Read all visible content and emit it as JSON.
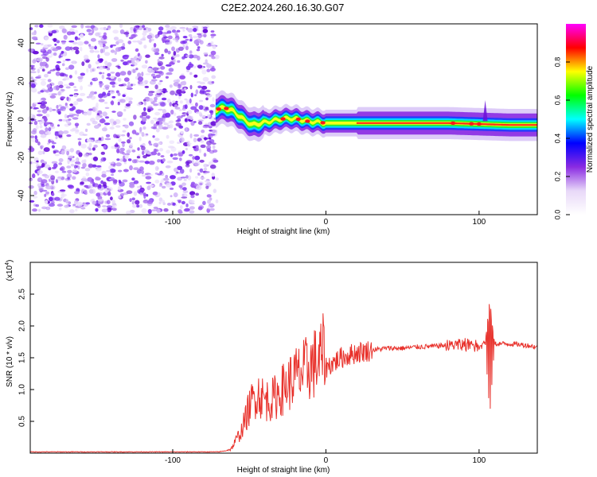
{
  "title": "C2E2.2024.260.16.30.G07",
  "chart_data": [
    {
      "type": "heatmap",
      "xlabel": "Height of straight line (km)",
      "ylabel": "Frequency (Hz)",
      "xlim": [
        -193,
        138
      ],
      "ylim": [
        -50,
        50
      ],
      "xticks": [
        -100,
        0,
        100
      ],
      "xtick_labels": [
        "-100",
        "0",
        "100"
      ],
      "yticks": [
        -40,
        -20,
        0,
        20,
        40
      ],
      "ytick_labels": [
        "-40",
        "-20",
        "0",
        "20",
        "40"
      ],
      "noise_region_x": [
        -193,
        -70
      ],
      "trace": {
        "x": [
          -72,
          -66,
          -60,
          -54,
          -48,
          -42,
          -36,
          -30,
          -24,
          -18,
          -12,
          -6,
          0,
          10,
          20,
          40,
          60,
          80,
          100,
          120,
          138
        ],
        "freq": [
          5,
          6,
          4,
          0,
          -3,
          -2,
          -1,
          0,
          0.5,
          0,
          -1,
          -1.5,
          -2,
          -2,
          -2,
          -2,
          -2,
          -2,
          -2.5,
          -3,
          -3
        ]
      },
      "colorbar": {
        "label": "Normalized spectral amplitude",
        "range": [
          0,
          1
        ],
        "ticks": [
          0.0,
          0.2,
          0.4,
          0.6,
          0.8
        ],
        "tick_labels": [
          "0.0",
          "0.2",
          "0.4",
          "0.6",
          "0.8"
        ],
        "colors": [
          "#ffffff",
          "#e8d8f8",
          "#8a2be2",
          "#0000ff",
          "#00ffff",
          "#00ff00",
          "#ffff00",
          "#ff0000",
          "#ff00ff"
        ]
      }
    },
    {
      "type": "line",
      "xlabel": "Height of straight line (km)",
      "ylabel": "SNR (10 * v/v)",
      "scale_note": "(x10",
      "scale_exp": "4",
      "xlim": [
        -193,
        138
      ],
      "ylim": [
        0,
        3
      ],
      "xticks": [
        -100,
        0,
        100
      ],
      "xtick_labels": [
        "-100",
        "0",
        "100"
      ],
      "yticks": [
        0.5,
        1.0,
        1.5,
        2.0,
        2.5
      ],
      "ytick_labels": [
        "0.5",
        "1.0",
        "1.5",
        "2.0",
        "2.5"
      ],
      "color": "#e8322c",
      "envelope": {
        "x": [
          -193,
          -70,
          -62,
          -55,
          -50,
          -45,
          -40,
          -35,
          -30,
          -25,
          -20,
          -15,
          -10,
          -5,
          0,
          10,
          20,
          30,
          40,
          50,
          60,
          70,
          80,
          90,
          100,
          105,
          110,
          120,
          130,
          138
        ],
        "y": [
          0.02,
          0.02,
          0.05,
          0.3,
          0.6,
          0.8,
          0.7,
          0.7,
          0.8,
          0.9,
          1.0,
          1.05,
          1.15,
          1.2,
          1.35,
          1.5,
          1.58,
          1.62,
          1.65,
          1.65,
          1.67,
          1.68,
          1.7,
          1.7,
          1.72,
          1.75,
          1.72,
          1.72,
          1.7,
          1.67
        ]
      }
    }
  ]
}
